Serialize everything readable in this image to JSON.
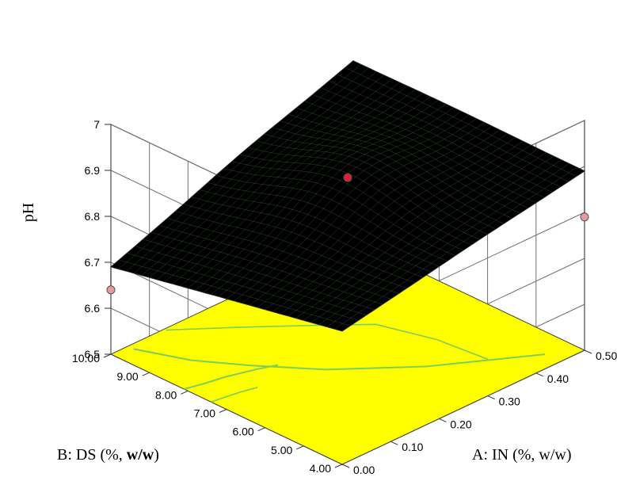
{
  "chart_data": {
    "type": "surface3d",
    "title": "",
    "xlabel": "A: IN (%, w/w)",
    "ylabel": "B: DS (%, w/w)",
    "ylabel_parts": {
      "prefix": "B: DS (%, ",
      "bold": "w/w",
      "suffix": ")"
    },
    "zlabel": "pH",
    "x_ticks": [
      "0.00",
      "0.10",
      "0.20",
      "0.30",
      "0.40",
      "0.50"
    ],
    "y_ticks": [
      "4.00",
      "5.00",
      "6.00",
      "7.00",
      "8.00",
      "9.00",
      "10.00"
    ],
    "z_ticks": [
      "6.5",
      "6.6",
      "6.7",
      "6.8",
      "6.9",
      "7"
    ],
    "xlim": [
      0,
      0.5
    ],
    "ylim": [
      4,
      10
    ],
    "zlim": [
      6.5,
      7.0
    ],
    "surface": {
      "x": [
        0,
        0.5
      ],
      "y": [
        4,
        10
      ],
      "z_grid": [
        {
          "x": 0,
          "y": 10,
          "z": 6.69
        },
        {
          "x": 0,
          "y": 4,
          "z": 6.79
        },
        {
          "x": 0.5,
          "y": 4,
          "z": 6.89
        },
        {
          "x": 0.5,
          "y": 10,
          "z": 6.89
        }
      ],
      "peak": {
        "x": 0.27,
        "y": 7.0,
        "z": 6.9
      }
    },
    "design_points": [
      {
        "x": 0.0,
        "y": 10.0,
        "z": 6.64,
        "color": "#e89a9a"
      },
      {
        "x": 0.25,
        "y": 7.0,
        "z": 6.88,
        "color": "#e0202a"
      },
      {
        "x": 0.5,
        "y": 4.0,
        "z": 6.79,
        "color": "#e89a9a"
      }
    ],
    "floor_color": "#ffff00",
    "contour_color": "#7ccf5a",
    "surface_color": "#000000",
    "surface_line_color": "#6fa86f",
    "grid": true
  }
}
